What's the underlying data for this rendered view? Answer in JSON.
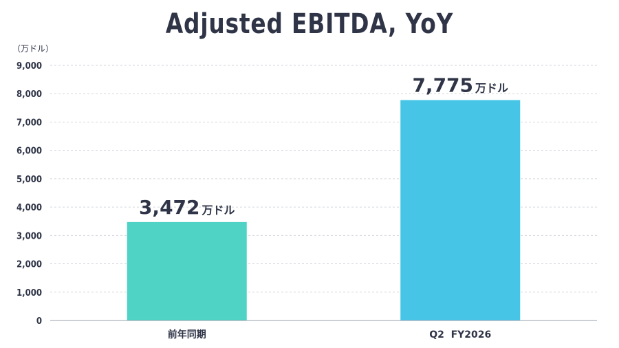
{
  "chart_data": {
    "type": "bar",
    "title": "Adjusted EBITDA, YoY",
    "unit_label": "（万ドル）",
    "categories": [
      "前年同期",
      "Q2  FY2026"
    ],
    "values": [
      3472,
      7775
    ],
    "value_labels": [
      "3,472",
      "7,775"
    ],
    "value_unit": "万ドル",
    "bar_colors": [
      "#4fd3c4",
      "#47c5e6"
    ],
    "ylim": [
      0,
      9000
    ],
    "yticks": [
      0,
      1000,
      2000,
      3000,
      4000,
      5000,
      6000,
      7000,
      8000,
      9000
    ],
    "ytick_labels": [
      "0",
      "1,000",
      "2,000",
      "3,000",
      "4,000",
      "5,000",
      "6,000",
      "7,000",
      "8,000",
      "9,000"
    ],
    "grid": true,
    "grid_style": "dashed"
  }
}
